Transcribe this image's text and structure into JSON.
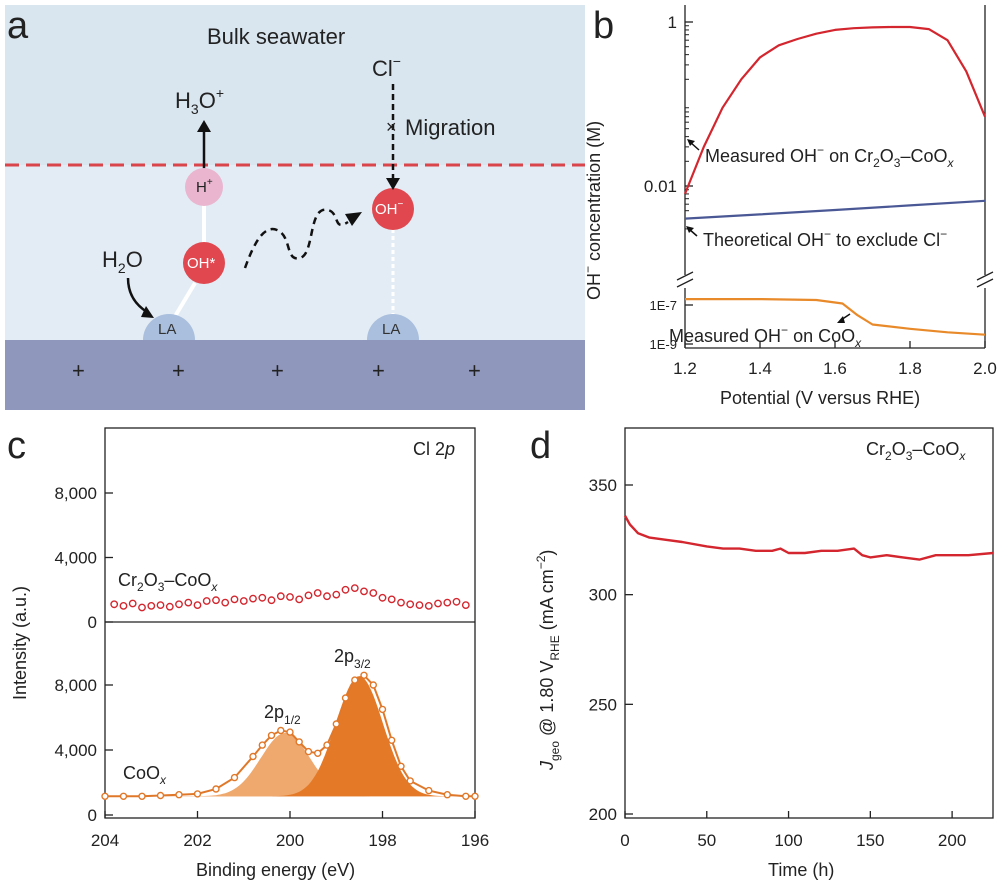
{
  "panel_labels": {
    "a": "a",
    "b": "b",
    "c": "c",
    "d": "d"
  },
  "schematic": {
    "title": "Bulk seawater",
    "h3o": "H",
    "h3o_sub": "3",
    "h3o_end": "O",
    "h3o_sup": "+",
    "h_plus": "H",
    "h_plus_sup": "+",
    "oh_star": "OH*",
    "oh_minus": "OH",
    "oh_minus_sup": "−",
    "h2o": "H",
    "h2o_sub": "2",
    "h2o_end": "O",
    "cl": "Cl",
    "cl_sup": "−",
    "cross": "×",
    "migration": "Migration",
    "la_left": "LA",
    "la_right": "LA",
    "plus_sign": "+",
    "colors": {
      "water_top": "#d9e5ef",
      "water_bottom": "#e2ebf3",
      "substrate": "#9097bc",
      "dash": "#d9454b",
      "node_red": "#e0474f",
      "node_pink": "#e9b5cf",
      "node_la": "#a9bfdd"
    }
  },
  "chart_data": [
    {
      "panel": "b",
      "type": "line",
      "xlabel": "Potential (V versus RHE)",
      "ylabel": "OH⁻ concentration (M)",
      "x_ticks": [
        "1.2",
        "1.4",
        "1.6",
        "1.8",
        "2.0"
      ],
      "xlim": [
        1.2,
        2.0
      ],
      "y_scale": "log (broken axis)",
      "y_ticks_upper": [
        "1",
        "0.01"
      ],
      "y_ticks_lower": [
        "1E-7",
        "1E-9"
      ],
      "series": [
        {
          "name": "Measured OH⁻ on Cr₂O₃–CoOₓ",
          "color": "#d3262e",
          "x": [
            1.2,
            1.25,
            1.3,
            1.35,
            1.4,
            1.45,
            1.5,
            1.55,
            1.6,
            1.65,
            1.7,
            1.75,
            1.8,
            1.85,
            1.9,
            1.95,
            2.0
          ],
          "y": [
            0.008,
            0.03,
            0.09,
            0.2,
            0.37,
            0.52,
            0.62,
            0.72,
            0.8,
            0.84,
            0.86,
            0.87,
            0.87,
            0.82,
            0.6,
            0.25,
            0.07
          ]
        },
        {
          "name": "Theoretical OH⁻ to exclude Cl⁻",
          "color": "#4a5896",
          "x": [
            1.2,
            1.4,
            1.6,
            1.8,
            2.0
          ],
          "y": [
            0.004,
            0.0045,
            0.0051,
            0.0058,
            0.0066
          ]
        },
        {
          "name": "Measured OH⁻ on CoOₓ",
          "color": "#e98a2a",
          "x": [
            1.2,
            1.4,
            1.55,
            1.62,
            1.66,
            1.7,
            1.8,
            1.9,
            2.0
          ],
          "y": [
            2e-07,
            2e-07,
            1.8e-07,
            1.2e-07,
            3e-08,
            1e-08,
            6e-09,
            4e-09,
            3e-09
          ]
        }
      ],
      "annotations": {
        "a1_pre": "Measured OH",
        "a1_sup": "−",
        "a1_mid": " on Cr",
        "a1_s1": "2",
        "a1_m2": "O",
        "a1_s2": "3",
        "a1_m3": "–CoO",
        "a1_x": "x",
        "a2_pre": "Theoretical OH",
        "a2_sup": "−",
        "a2_mid": " to exclude Cl",
        "a2_sup2": "−",
        "a3_pre": "Measured OH",
        "a3_sup": "−",
        "a3_mid": " on CoO",
        "a3_x": "x",
        "y_pre": "OH",
        "y_sup": "−",
        "y_post": " concentration (M)"
      }
    },
    {
      "panel": "c",
      "type": "scatter",
      "xlabel": "Binding energy (eV)",
      "ylabel": "Intensity (a.u.)",
      "x_ticks": [
        "204",
        "202",
        "200",
        "198",
        "196"
      ],
      "xlim": [
        204,
        196
      ],
      "y_ticks": [
        "0",
        "4,000",
        "8,000"
      ],
      "ylim": [
        0,
        12000
      ],
      "annotation_top": "Cl 2p",
      "series": [
        {
          "name": "Cr₂O₃–CoOₓ",
          "color": "#d3262e",
          "x": [
            203.8,
            203.6,
            203.4,
            203.2,
            203.0,
            202.8,
            202.6,
            202.4,
            202.2,
            202.0,
            201.8,
            201.6,
            201.4,
            201.2,
            201.0,
            200.8,
            200.6,
            200.4,
            200.2,
            200.0,
            199.8,
            199.6,
            199.4,
            199.2,
            199.0,
            198.8,
            198.6,
            198.4,
            198.2,
            198.0,
            197.8,
            197.6,
            197.4,
            197.2,
            197.0,
            196.8,
            196.6,
            196.4,
            196.2
          ],
          "y": [
            1100,
            1000,
            1150,
            900,
            1000,
            1050,
            950,
            1100,
            1200,
            1050,
            1300,
            1350,
            1200,
            1400,
            1300,
            1450,
            1500,
            1350,
            1600,
            1550,
            1400,
            1650,
            1800,
            1600,
            1700,
            2000,
            2100,
            1900,
            1800,
            1500,
            1400,
            1200,
            1100,
            1050,
            1000,
            1150,
            1200,
            1250,
            1050
          ]
        },
        {
          "name": "CoOₓ",
          "color": "#e0782a",
          "x": [
            204.0,
            203.6,
            203.2,
            202.8,
            202.4,
            202.0,
            201.6,
            201.2,
            200.8,
            200.6,
            200.4,
            200.2,
            200.0,
            199.8,
            199.6,
            199.4,
            199.2,
            199.0,
            198.8,
            198.6,
            198.4,
            198.2,
            198.0,
            197.8,
            197.6,
            197.4,
            197.0,
            196.6,
            196.2,
            196.0
          ],
          "y": [
            1150,
            1150,
            1150,
            1200,
            1250,
            1300,
            1600,
            2300,
            3600,
            4300,
            4900,
            5200,
            5100,
            4500,
            3900,
            3800,
            4300,
            5600,
            7200,
            8300,
            8600,
            8000,
            6500,
            4600,
            3000,
            2100,
            1500,
            1250,
            1150,
            1150
          ]
        }
      ],
      "peak_labels": {
        "p12": "2p",
        "p12_sub": "1/2",
        "p32": "2p",
        "p32_sub": "3/2"
      },
      "series_labels": {
        "top_pre": "Cr",
        "top_s1": "2",
        "top_m": "O",
        "top_s2": "3",
        "top_m2": "–CoO",
        "top_x": "x",
        "bot_pre": "CoO",
        "bot_x": "x"
      }
    },
    {
      "panel": "d",
      "type": "line",
      "xlabel": "Time (h)",
      "ylabel": "Jgeo @ 1.80 VRHE (mA cm−2)",
      "x_ticks": [
        "0",
        "50",
        "100",
        "150",
        "200"
      ],
      "xlim": [
        0,
        225
      ],
      "y_ticks": [
        "200",
        "250",
        "300",
        "350"
      ],
      "ylim": [
        200,
        375
      ],
      "series": [
        {
          "name": "Cr₂O₃–CoOₓ",
          "color": "#d3262e",
          "x": [
            0,
            3,
            8,
            15,
            25,
            35,
            50,
            60,
            70,
            80,
            90,
            95,
            100,
            110,
            120,
            130,
            140,
            145,
            150,
            160,
            170,
            180,
            190,
            200,
            210,
            225
          ],
          "y": [
            336,
            332,
            328,
            326,
            325,
            324,
            322,
            321,
            321,
            320,
            320,
            321,
            319,
            319,
            320,
            320,
            321,
            318,
            317,
            318,
            317,
            316,
            318,
            318,
            318,
            319
          ]
        }
      ],
      "legend_text": {
        "pre": "Cr",
        "s1": "2",
        "m": "O",
        "s2": "3",
        "m2": "–CoO",
        "x": "x"
      },
      "ylabel_parts": {
        "j": "J",
        "geo": "geo",
        "mid": " @ 1.80 V",
        "rhe": "RHE",
        "unit": " (mA cm",
        "exp": "−2",
        "close": ")"
      }
    }
  ]
}
